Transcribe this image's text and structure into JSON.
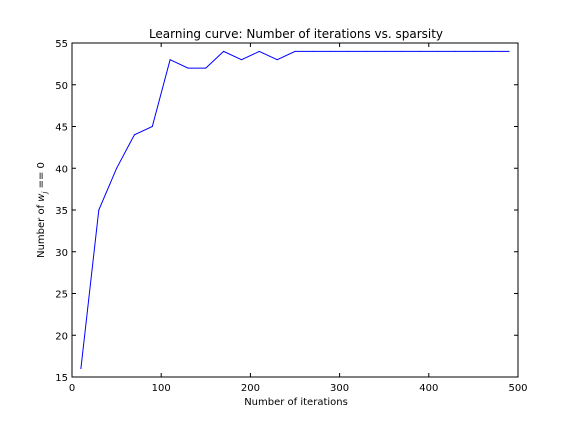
{
  "chart_data": {
    "type": "line",
    "title": "Learning curve: Number of iterations vs. sparsity",
    "xlabel": "Number of iterations",
    "ylabel_prefix": "Number of ",
    "ylabel_symbol": "w",
    "ylabel_subscript": "j",
    "ylabel_suffix": " == 0",
    "xlim": [
      0,
      500
    ],
    "ylim": [
      15,
      55
    ],
    "xticks": [
      0,
      100,
      200,
      300,
      400,
      500
    ],
    "yticks": [
      15,
      20,
      25,
      30,
      35,
      40,
      45,
      50,
      55
    ],
    "grid": false,
    "series": [
      {
        "color": "#0000ff",
        "x": [
          10,
          30,
          50,
          70,
          90,
          110,
          130,
          150,
          170,
          190,
          210,
          230,
          250,
          270,
          290,
          310,
          330,
          350,
          370,
          390,
          410,
          430,
          450,
          470,
          490
        ],
        "values": [
          16,
          35,
          40,
          44,
          45,
          53,
          52,
          52,
          54,
          53,
          54,
          53,
          54,
          54,
          54,
          54,
          54,
          54,
          54,
          54,
          54,
          54,
          54,
          54,
          54
        ]
      }
    ]
  }
}
